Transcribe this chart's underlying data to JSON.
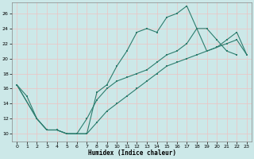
{
  "xlabel": "Humidex (Indice chaleur)",
  "bg_color": "#cce8e8",
  "grid_color": "#e8c8c8",
  "line_color": "#2d7d6e",
  "xlim_min": -0.5,
  "xlim_max": 23.5,
  "ylim_min": 9,
  "ylim_max": 27.5,
  "xticks": [
    0,
    1,
    2,
    3,
    4,
    5,
    6,
    7,
    8,
    9,
    10,
    11,
    12,
    13,
    14,
    15,
    16,
    17,
    18,
    19,
    20,
    21,
    22,
    23
  ],
  "yticks": [
    10,
    12,
    14,
    16,
    18,
    20,
    22,
    24,
    26
  ],
  "line1_x": [
    0,
    1,
    2,
    3,
    4,
    5,
    6,
    7,
    8,
    9,
    10,
    11,
    12,
    13,
    14,
    15,
    16,
    17,
    18,
    19,
    20,
    21,
    22
  ],
  "line1_y": [
    16.5,
    15.0,
    12.0,
    10.5,
    10.5,
    10.0,
    10.0,
    10.0,
    15.5,
    16.5,
    19.0,
    21.0,
    23.5,
    24.0,
    23.5,
    25.5,
    26.0,
    27.0,
    24.0,
    24.0,
    22.5,
    21.0,
    20.5
  ],
  "line2_x": [
    0,
    2,
    3,
    4,
    5,
    6,
    7,
    8,
    9,
    10,
    11,
    12,
    13,
    14,
    15,
    16,
    17,
    18,
    19,
    20,
    21,
    22,
    23
  ],
  "line2_y": [
    16.5,
    12.0,
    10.5,
    10.5,
    10.0,
    10.0,
    12.0,
    14.5,
    16.0,
    17.0,
    17.5,
    18.0,
    18.5,
    19.5,
    20.5,
    21.0,
    22.0,
    24.0,
    21.0,
    21.5,
    22.5,
    23.5,
    20.5
  ],
  "line3_x": [
    0,
    2,
    3,
    4,
    5,
    6,
    7,
    8,
    9,
    10,
    11,
    12,
    13,
    14,
    15,
    16,
    17,
    18,
    19,
    20,
    21,
    22,
    23
  ],
  "line3_y": [
    16.5,
    12.0,
    10.5,
    10.5,
    10.0,
    10.0,
    10.0,
    11.5,
    13.0,
    14.0,
    15.0,
    16.0,
    17.0,
    18.0,
    19.0,
    19.5,
    20.0,
    20.5,
    21.0,
    21.5,
    22.0,
    22.5,
    20.5
  ]
}
